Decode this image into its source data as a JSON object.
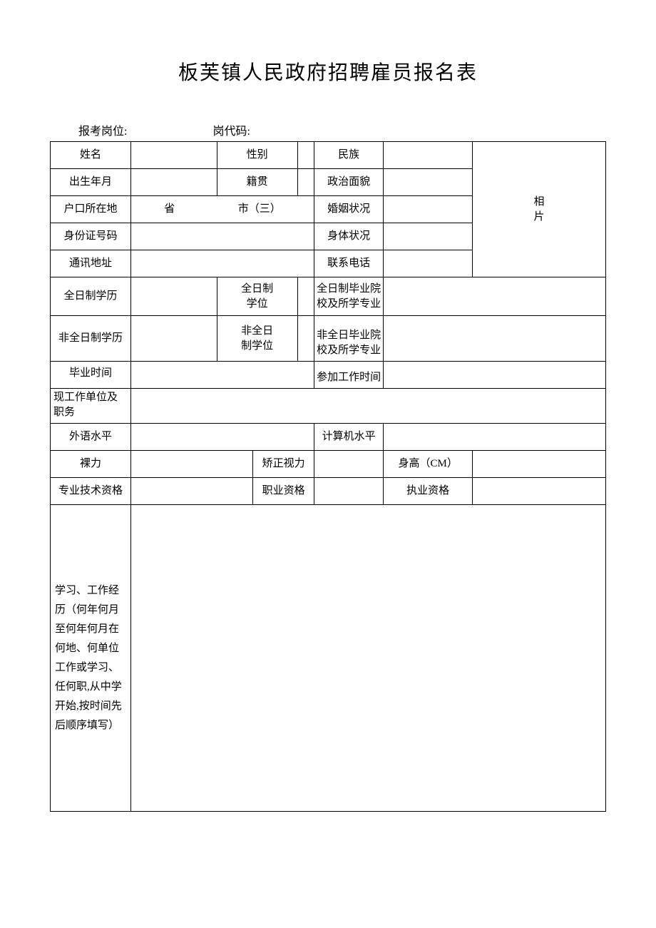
{
  "title": "板芙镇人民政府招聘雇员报名表",
  "header": {
    "position_label": "报考岗位:",
    "position_value": "",
    "code_label": "岗代码:",
    "code_value": ""
  },
  "labels": {
    "name": "姓名",
    "gender": "性别",
    "ethnicity": "民族",
    "birth": "出生年月",
    "native": "籍贯",
    "political": "政治面貌",
    "hukou": "户口所在地",
    "province": "省",
    "city": "市（三）",
    "marital": "婚姻状况",
    "photo": "相\n片",
    "id_number": "身份证号码",
    "health": "身体状况",
    "address": "通讯地址",
    "phone": "联系电话",
    "fulltime_edu": "全日制学历",
    "fulltime_degree": "全日制\n学位",
    "fulltime_school": "全日制毕业院\n校及所学专业",
    "parttime_edu": "非全日制学历",
    "parttime_degree": "非全日\n制学位",
    "parttime_school": "非全日毕业院\n校及所学专业",
    "grad_time": "毕业时间",
    "work_start": "参加工作时间",
    "current_work": "现工作单位及职务",
    "foreign_lang": "外语水平",
    "computer": "计算机水平",
    "naked_vision": "裸力",
    "corrected_vision": "矫正视力",
    "height": "身高（CM）",
    "pro_tech": "专业技术资格",
    "vocational": "职业资格",
    "practice": "执业资格",
    "experience": "学习、工作经历（何年何月至何年何月在何地、何单位工作或学习、任何职,从中学开始,按时间先后顺序填写）"
  },
  "values": {
    "name": "",
    "gender": "",
    "ethnicity": "",
    "birth": "",
    "native": "",
    "political": "",
    "marital": "",
    "id_number": "",
    "health": "",
    "address": "",
    "phone": "",
    "fulltime_edu": "",
    "fulltime_degree": "",
    "fulltime_school": "",
    "parttime_edu": "",
    "parttime_degree": "",
    "parttime_school": "",
    "grad_time": "",
    "work_start": "",
    "current_work": "",
    "foreign_lang": "",
    "computer": "",
    "naked_vision": "",
    "corrected_vision": "",
    "height": "",
    "pro_tech": "",
    "vocational": "",
    "practice": "",
    "experience": ""
  },
  "style": {
    "title_fontsize": 28,
    "cell_fontsize": 15,
    "border_color": "#000000",
    "background_color": "#ffffff",
    "text_color": "#000000",
    "font_family": "SimSun"
  }
}
